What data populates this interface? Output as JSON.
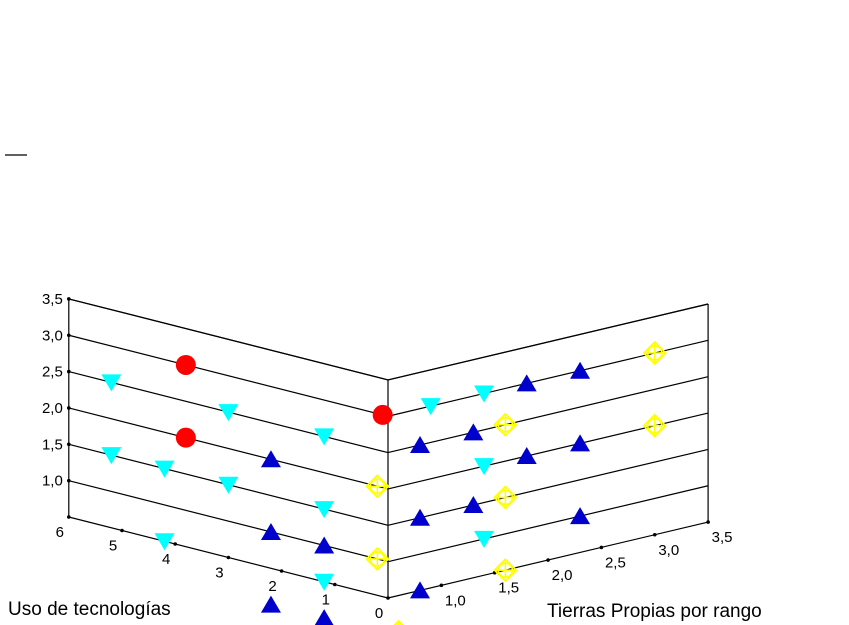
{
  "chart_data": {
    "type": "scatter3d",
    "title": "",
    "xlabel": "Uso de tecnologías",
    "ylabel": "Tierras Propias por rango",
    "zlabel": "",
    "xlim": [
      0,
      6
    ],
    "ylim": [
      0.5,
      3.5
    ],
    "zlim": [
      0.5,
      3.5
    ],
    "x_ticks": [
      "0",
      "1",
      "2",
      "3",
      "4",
      "5",
      "6"
    ],
    "y_ticks": [
      "1,0",
      "1,5",
      "2,0",
      "2,5",
      "3,0",
      "3,5"
    ],
    "z_ticks": [
      "1,0",
      "1,5",
      "2,0",
      "2,5",
      "3,0",
      "3,5"
    ],
    "grid": true,
    "series": [
      {
        "marker": "circle",
        "color": "#ff0000",
        "points": [
          {
            "x": 3.8,
            "y": 0.5,
            "z": 3
          },
          {
            "x": 0.1,
            "y": 0.5,
            "z": 3
          },
          {
            "x": 3.8,
            "y": 0.5,
            "z": 2
          }
        ]
      },
      {
        "marker": "triangle-down",
        "color": "#00ffff",
        "points": [
          {
            "x": 5.2,
            "y": 0.5,
            "z": 2.5
          },
          {
            "x": 3.0,
            "y": 0.5,
            "z": 2.5
          },
          {
            "x": 1.2,
            "y": 0.5,
            "z": 2.5
          },
          {
            "x": 0,
            "y": 0.9,
            "z": 3
          },
          {
            "x": 0,
            "y": 1.4,
            "z": 3
          },
          {
            "x": 5.2,
            "y": 0.5,
            "z": 1.5
          },
          {
            "x": 4.2,
            "y": 0.5,
            "z": 1.5
          },
          {
            "x": 3.0,
            "y": 0.5,
            "z": 1.5
          },
          {
            "x": 1.2,
            "y": 0.5,
            "z": 1.5
          },
          {
            "x": 0,
            "y": 1.4,
            "z": 2
          },
          {
            "x": 4.2,
            "y": 0.5,
            "z": 0.5
          },
          {
            "x": 1.2,
            "y": 0.5,
            "z": 0.5
          },
          {
            "x": 0,
            "y": 1.4,
            "z": 1
          }
        ]
      },
      {
        "marker": "triangle-up",
        "color": "#0000cc",
        "points": [
          {
            "x": 2.2,
            "y": 0.5,
            "z": 2
          },
          {
            "x": 0,
            "y": 0.8,
            "z": 2.5
          },
          {
            "x": 0,
            "y": 1.3,
            "z": 2.5
          },
          {
            "x": 0,
            "y": 1.8,
            "z": 3
          },
          {
            "x": 0,
            "y": 2.3,
            "z": 3
          },
          {
            "x": 2.2,
            "y": 0.5,
            "z": 1
          },
          {
            "x": 1.2,
            "y": 0.5,
            "z": 1
          },
          {
            "x": 0,
            "y": 0.8,
            "z": 1.5
          },
          {
            "x": 0,
            "y": 1.3,
            "z": 1.5
          },
          {
            "x": 0,
            "y": 1.8,
            "z": 2
          },
          {
            "x": 0,
            "y": 2.3,
            "z": 2
          },
          {
            "x": 2.2,
            "y": 0.5,
            "z": 0
          },
          {
            "x": 1.2,
            "y": 0.5,
            "z": 0
          },
          {
            "x": 0,
            "y": 0.8,
            "z": 0.5
          },
          {
            "x": 0,
            "y": 2.3,
            "z": 1
          }
        ]
      },
      {
        "marker": "diamond-plus",
        "color": "#ffff00",
        "points": [
          {
            "x": 0.2,
            "y": 0.5,
            "z": 2
          },
          {
            "x": 0,
            "y": 1.6,
            "z": 2.5
          },
          {
            "x": 0,
            "y": 3.0,
            "z": 3
          },
          {
            "x": 0.2,
            "y": 0.5,
            "z": 1
          },
          {
            "x": 0,
            "y": 1.6,
            "z": 1.5
          },
          {
            "x": 0,
            "y": 3.0,
            "z": 2
          },
          {
            "x": 0,
            "y": 0.6,
            "z": 0
          },
          {
            "x": 0,
            "y": 1.6,
            "z": 0.5
          }
        ]
      }
    ]
  }
}
